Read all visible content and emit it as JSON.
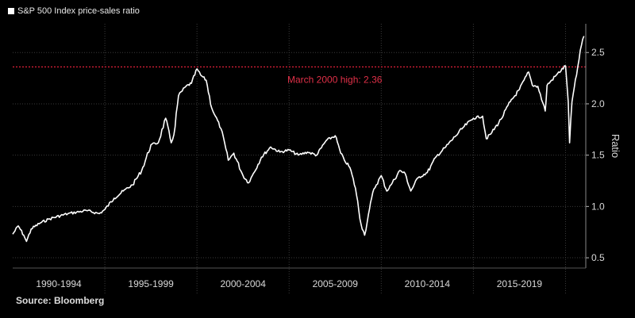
{
  "chart_data": {
    "type": "line",
    "legend": "S&P 500 Index price-sales ratio",
    "source": "Source: Bloomberg",
    "ylabel": "Ratio",
    "ylim": [
      0.4,
      2.78
    ],
    "yticks": [
      0.5,
      1.0,
      1.5,
      2.0,
      2.5
    ],
    "ytick_labels": [
      "0.5",
      "1.0",
      "1.5",
      "2.0",
      "2.5"
    ],
    "xlim": [
      1990.0,
      2021.1
    ],
    "x_categories": [
      {
        "label": "1990-1994",
        "start": 1990,
        "end": 1995
      },
      {
        "label": "1995-1999",
        "start": 1995,
        "end": 2000
      },
      {
        "label": "2000-2004",
        "start": 2000,
        "end": 2005
      },
      {
        "label": "2005-2009",
        "start": 2005,
        "end": 2010
      },
      {
        "label": "2010-2014",
        "start": 2010,
        "end": 2015
      },
      {
        "label": "2015-2019",
        "start": 2015,
        "end": 2020
      }
    ],
    "reference_line": {
      "value": 2.36,
      "label": "March 2000 high: 2.36",
      "color": "#e0203a"
    },
    "grid": true,
    "legend_position": "top-left",
    "series": [
      {
        "color": "#ffffff",
        "x": [
          1990.0,
          1990.3,
          1990.6,
          1990.75,
          1991.0,
          1991.5,
          1992.0,
          1993.0,
          1994.0,
          1994.7,
          1995.0,
          1995.5,
          1996.0,
          1996.5,
          1997.0,
          1997.5,
          1997.9,
          1998.3,
          1998.6,
          1998.75,
          1999.0,
          1999.4,
          1999.7,
          2000.0,
          2000.2,
          2000.5,
          2000.8,
          2001.0,
          2001.3,
          2001.7,
          2002.0,
          2002.5,
          2002.8,
          2003.0,
          2003.5,
          2004.0,
          2004.5,
          2005.0,
          2005.5,
          2006.0,
          2006.5,
          2007.0,
          2007.5,
          2007.8,
          2008.0,
          2008.3,
          2008.6,
          2008.9,
          2009.1,
          2009.3,
          2009.6,
          2010.0,
          2010.3,
          2010.6,
          2011.0,
          2011.3,
          2011.6,
          2012.0,
          2012.5,
          2013.0,
          2013.5,
          2014.0,
          2014.5,
          2015.0,
          2015.5,
          2015.7,
          2016.0,
          2016.5,
          2017.0,
          2017.5,
          2018.0,
          2018.2,
          2018.5,
          2018.9,
          2019.0,
          2019.5,
          2020.0,
          2020.15,
          2020.22,
          2020.35,
          2020.6,
          2020.8,
          2021.0
        ],
        "values": [
          0.73,
          0.81,
          0.72,
          0.66,
          0.78,
          0.84,
          0.88,
          0.93,
          0.96,
          0.93,
          0.97,
          1.08,
          1.15,
          1.21,
          1.35,
          1.6,
          1.62,
          1.86,
          1.62,
          1.7,
          2.08,
          2.17,
          2.2,
          2.34,
          2.28,
          2.23,
          1.96,
          1.88,
          1.76,
          1.45,
          1.52,
          1.3,
          1.23,
          1.3,
          1.48,
          1.58,
          1.53,
          1.55,
          1.5,
          1.53,
          1.5,
          1.64,
          1.69,
          1.52,
          1.45,
          1.38,
          1.18,
          0.83,
          0.72,
          0.92,
          1.17,
          1.3,
          1.15,
          1.23,
          1.35,
          1.32,
          1.15,
          1.28,
          1.33,
          1.49,
          1.58,
          1.68,
          1.78,
          1.86,
          1.88,
          1.66,
          1.72,
          1.85,
          2.02,
          2.14,
          2.31,
          2.18,
          2.17,
          1.93,
          2.18,
          2.28,
          2.37,
          2.02,
          1.62,
          2.02,
          2.28,
          2.52,
          2.66
        ]
      }
    ]
  }
}
